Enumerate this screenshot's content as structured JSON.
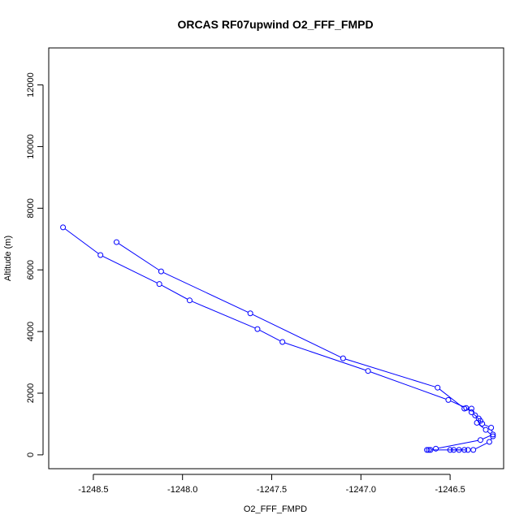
{
  "chart_data": {
    "type": "line",
    "title": "ORCAS RF07upwind O2_FFF_FMPD",
    "xlabel": "O2_FFF_FMPD",
    "ylabel": "Altitude (m)",
    "xlim": [
      -1248.75,
      -1246.2
    ],
    "ylim": [
      -450,
      13200
    ],
    "xticks": [
      -1248.5,
      -1248.0,
      -1247.5,
      -1247.0,
      -1246.5
    ],
    "xtick_labels": [
      "-1248.5",
      "-1248.0",
      "-1247.5",
      "-1247.0",
      "-1246.5"
    ],
    "yticks": [
      0,
      2000,
      4000,
      6000,
      8000,
      10000,
      12000
    ],
    "ytick_labels": [
      "0",
      "2000",
      "4000",
      "6000",
      "8000",
      "10000",
      "12000"
    ],
    "grid": false,
    "marker": "open-circle",
    "color": "#0000ff",
    "series": [
      {
        "x": [
          -1248.67,
          -1248.46,
          -1248.13,
          -1247.96,
          -1247.58,
          -1247.44,
          -1246.96,
          -1246.51,
          -1246.41,
          -1246.38,
          -1246.34,
          -1246.32,
          -1246.27,
          -1246.26,
          -1246.33,
          -1246.58,
          -1246.61,
          -1246.63,
          -1246.62,
          -1246.42,
          -1246.45,
          -1246.48,
          -1246.5,
          -1246.4,
          -1246.37,
          -1246.28,
          -1246.26,
          -1246.3,
          -1246.35,
          -1246.33,
          -1246.36,
          -1246.38,
          -1246.42,
          -1246.57,
          -1247.1,
          -1247.62,
          -1248.12,
          -1248.37
        ],
        "y": [
          7380,
          6480,
          5540,
          5010,
          4080,
          3660,
          2720,
          1780,
          1520,
          1380,
          1180,
          1010,
          880,
          660,
          480,
          200,
          160,
          160,
          160,
          160,
          160,
          160,
          160,
          160,
          160,
          420,
          600,
          810,
          1040,
          1100,
          1280,
          1500,
          1500,
          2180,
          3130,
          4590,
          5950,
          6900
        ]
      }
    ]
  }
}
